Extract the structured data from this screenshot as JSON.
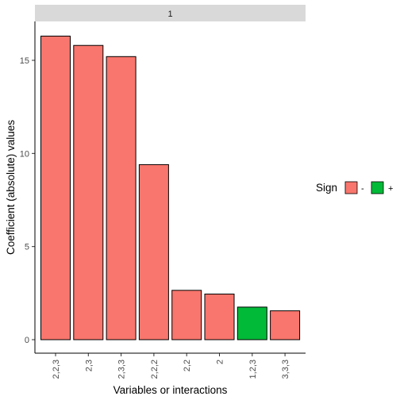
{
  "chart_data": {
    "type": "bar",
    "facet_label": "1",
    "categories": [
      "2,2,3",
      "2,3",
      "2,3,3",
      "2,2,2",
      "2,2",
      "2",
      "1,2,3",
      "3,3,3"
    ],
    "values": [
      16.3,
      15.8,
      15.2,
      9.4,
      2.65,
      2.45,
      1.75,
      1.55
    ],
    "signs": [
      "-",
      "-",
      "-",
      "-",
      "-",
      "-",
      "+",
      "-"
    ],
    "xlabel": "Variables or interactions",
    "ylabel": "Coefficient (absolute) values",
    "ylim": [
      0,
      17.1
    ],
    "yticks": [
      0,
      5,
      10,
      15
    ],
    "legend": {
      "title": "Sign",
      "placement": "right",
      "entries": [
        {
          "label": "-",
          "color": "#F8766D"
        },
        {
          "label": "+",
          "color": "#00BA38"
        }
      ]
    },
    "grid": false
  }
}
